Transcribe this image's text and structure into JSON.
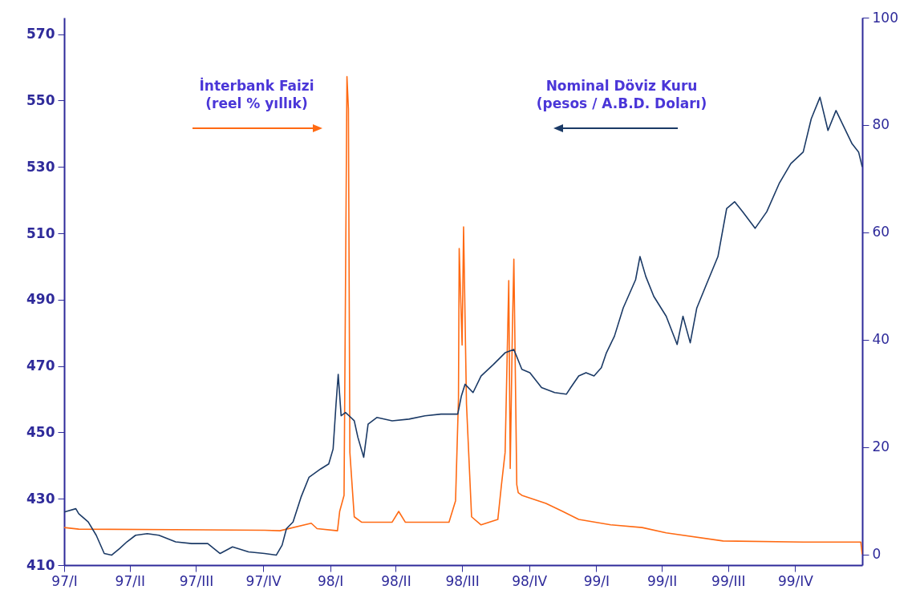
{
  "chart_data": {
    "type": "line",
    "xlim": [
      "1997-01-01",
      "2000-01-01"
    ],
    "xticks": [
      {
        "value": "1997-01-01",
        "label": "97/I"
      },
      {
        "value": "1997-04-01",
        "label": "97/II"
      },
      {
        "value": "1997-07-01",
        "label": "97/III"
      },
      {
        "value": "1997-10-01",
        "label": "97/IV"
      },
      {
        "value": "1998-01-01",
        "label": "98/I"
      },
      {
        "value": "1998-04-01",
        "label": "98/II"
      },
      {
        "value": "1998-07-01",
        "label": "98/III"
      },
      {
        "value": "1998-10-01",
        "label": "98/IV"
      },
      {
        "value": "1999-01-01",
        "label": "99/I"
      },
      {
        "value": "1999-04-01",
        "label": "99/II"
      },
      {
        "value": "1999-07-01",
        "label": "99/III"
      },
      {
        "value": "1999-10-01",
        "label": "99/IV"
      }
    ],
    "ylim": [
      410,
      575
    ],
    "yticks": [
      410,
      430,
      450,
      470,
      490,
      510,
      530,
      550,
      570
    ],
    "y2lim": [
      -2,
      100
    ],
    "y2ticks": [
      0,
      20,
      40,
      60,
      80,
      100
    ],
    "grid": false,
    "annotations": [
      "İnterbank Faizi\n(reel % yıllık)",
      "Nominal Döviz Kuru\n(pesos / A.B.D. Doları)"
    ],
    "series": [
      {
        "color": "#ff6a13",
        "axis": "y2",
        "x": [
          "1997-01-01",
          "1997-01-21",
          "1997-10-03",
          "1997-10-24",
          "1997-12-06",
          "1997-12-14",
          "1998-01-11",
          "1998-01-14",
          "1998-01-20",
          "1998-01-24",
          "1998-01-26",
          "1998-01-28",
          "1998-02-03",
          "1998-02-13",
          "1998-03-27",
          "1998-04-05",
          "1998-04-14",
          "1998-06-13",
          "1998-06-22",
          "1998-06-26",
          "1998-06-27",
          "1998-07-01",
          "1998-07-03",
          "1998-07-07",
          "1998-07-14",
          "1998-07-27",
          "1998-08-19",
          "1998-08-24",
          "1998-08-29",
          "1998-09-03",
          "1998-09-05",
          "1998-09-08",
          "1998-09-10",
          "1998-09-14",
          "1998-09-16",
          "1998-09-21",
          "1998-10-24",
          "1998-11-16",
          "1998-12-08",
          "1999-01-21",
          "1999-03-05",
          "1999-04-07",
          "1999-06-24",
          "1999-10-12",
          "1999-12-30",
          "2000-01-01"
        ],
        "values": [
          5,
          4.7,
          4.5,
          4.4,
          5.8,
          4.8,
          4.4,
          8,
          11,
          89,
          83,
          19,
          7,
          6,
          6,
          8,
          6,
          6,
          10,
          29,
          57,
          39,
          61,
          28,
          7,
          5.5,
          6.5,
          13,
          19,
          51,
          16,
          42,
          55,
          13,
          11.5,
          11,
          9.5,
          8,
          6.5,
          5.5,
          5,
          4,
          2.5,
          2.3,
          2.3,
          0
        ]
      },
      {
        "color": "#1b3a66",
        "axis": "y",
        "x": [
          "1997-01-01",
          "1997-01-17",
          "1997-01-21",
          "1997-02-03",
          "1997-02-14",
          "1997-02-25",
          "1997-03-07",
          "1997-03-18",
          "1997-03-28",
          "1997-04-09",
          "1997-04-25",
          "1997-05-11",
          "1997-06-03",
          "1997-06-25",
          "1997-07-17",
          "1997-08-03",
          "1997-08-20",
          "1997-09-11",
          "1997-10-03",
          "1997-10-19",
          "1997-10-27",
          "1997-11-02",
          "1997-11-11",
          "1997-11-22",
          "1997-12-03",
          "1997-12-19",
          "1997-12-30",
          "1998-01-05",
          "1998-01-09",
          "1998-01-12",
          "1998-01-16",
          "1998-01-22",
          "1998-01-27",
          "1998-02-03",
          "1998-02-08",
          "1998-02-16",
          "1998-02-22",
          "1998-03-06",
          "1998-03-27",
          "1998-04-19",
          "1998-05-11",
          "1998-06-02",
          "1998-06-25",
          "1998-06-30",
          "1998-07-05",
          "1998-07-16",
          "1998-07-27",
          "1998-08-13",
          "1998-08-29",
          "1998-09-10",
          "1998-09-21",
          "1998-10-02",
          "1998-10-18",
          "1998-11-05",
          "1998-11-21",
          "1998-11-27",
          "1998-12-08",
          "1998-12-18",
          "1998-12-29",
          "1999-01-08",
          "1999-01-15",
          "1999-01-26",
          "1999-02-07",
          "1999-02-24",
          "1999-03-02",
          "1999-03-10",
          "1999-03-21",
          "1999-04-07",
          "1999-04-22",
          "1999-04-30",
          "1999-05-10",
          "1999-05-19",
          "1999-06-01",
          "1999-06-17",
          "1999-06-29",
          "1999-07-10",
          "1999-07-21",
          "1999-08-07",
          "1999-08-23",
          "1999-09-09",
          "1999-09-25",
          "1999-10-12",
          "1999-10-23",
          "1999-11-04",
          "1999-11-15",
          "1999-11-26",
          "1999-12-07",
          "1999-12-18",
          "1999-12-27",
          "2000-01-01"
        ],
        "values": [
          426,
          427,
          425.5,
          423,
          419,
          413.5,
          413,
          415,
          417,
          419,
          419.5,
          419,
          417,
          416.5,
          416.5,
          413.5,
          415.5,
          414,
          413.5,
          413,
          416,
          421,
          423,
          430.5,
          436.5,
          439,
          440.5,
          445,
          458.5,
          467.5,
          455,
          456,
          455,
          453.5,
          448.5,
          442.5,
          452.5,
          454.5,
          453.5,
          454,
          455,
          455.5,
          455.5,
          461,
          464.5,
          462,
          467,
          470.5,
          474,
          475,
          469,
          468,
          463.5,
          462,
          461.5,
          463.5,
          467,
          468,
          467,
          469.5,
          474,
          479,
          487.5,
          496,
          503,
          497,
          491,
          485,
          476.5,
          485,
          477,
          487.5,
          494.5,
          503,
          517.5,
          519.5,
          516.5,
          511.5,
          516.5,
          525,
          531,
          534.5,
          544.5,
          551,
          541,
          547,
          542,
          537,
          534.5,
          530
        ]
      }
    ]
  }
}
